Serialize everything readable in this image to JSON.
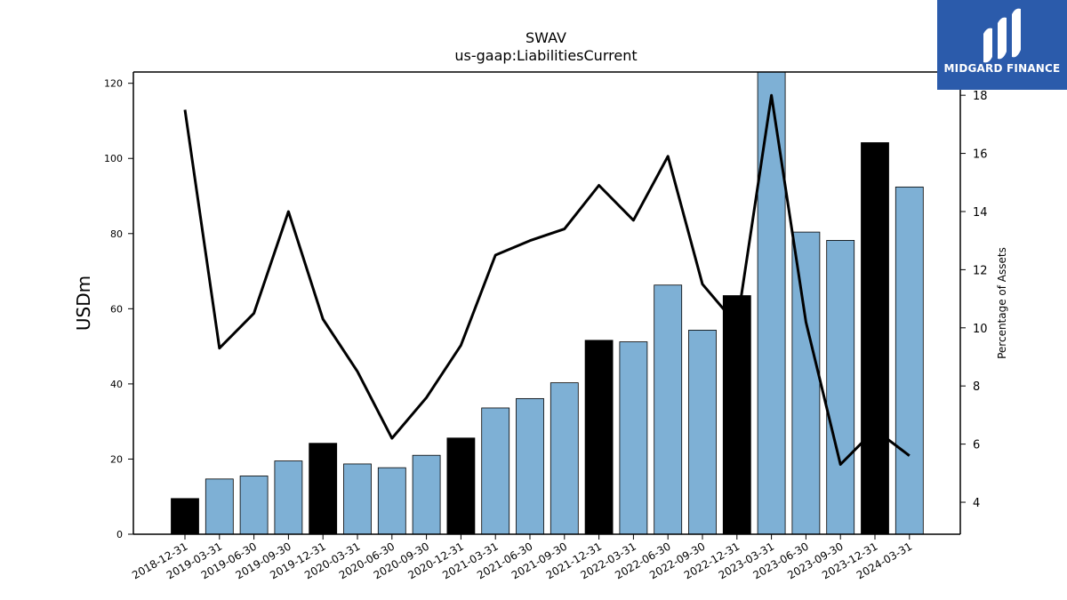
{
  "brand": {
    "name": "MIDGARD FINANCE",
    "bg_color": "#2b5bab"
  },
  "chart_data": {
    "type": "bar",
    "title": "SWAV",
    "subtitle": "us-gaap:LiabilitiesCurrent",
    "ylabel": "USDm",
    "y2label": "Percentage of Assets",
    "ylim": [
      0,
      123
    ],
    "y2lim": [
      2.9,
      18.8
    ],
    "yticks": [
      0,
      20,
      40,
      60,
      80,
      100,
      120
    ],
    "y2ticks": [
      4,
      6,
      8,
      10,
      12,
      14,
      16,
      18
    ],
    "categories": [
      "2018-12-31",
      "2019-03-31",
      "2019-06-30",
      "2019-09-30",
      "2019-12-31",
      "2020-03-31",
      "2020-06-30",
      "2020-09-30",
      "2020-12-31",
      "2021-03-31",
      "2021-06-30",
      "2021-09-30",
      "2021-12-31",
      "2022-03-31",
      "2022-06-30",
      "2022-09-30",
      "2022-12-31",
      "2023-03-31",
      "2023-06-30",
      "2023-09-30",
      "2023-12-31",
      "2024-03-31"
    ],
    "series": [
      {
        "type": "bar",
        "values": [
          9.5,
          14.7,
          15.5,
          19.5,
          24.2,
          18.7,
          17.7,
          21.0,
          25.6,
          33.6,
          36.1,
          40.3,
          51.6,
          51.2,
          66.3,
          54.3,
          63.5,
          123,
          80.4,
          78.2,
          104.2,
          92.4
        ],
        "colors": [
          "#000000",
          "#7eb0d5",
          "#7eb0d5",
          "#7eb0d5",
          "#000000",
          "#7eb0d5",
          "#7eb0d5",
          "#7eb0d5",
          "#000000",
          "#7eb0d5",
          "#7eb0d5",
          "#7eb0d5",
          "#000000",
          "#7eb0d5",
          "#7eb0d5",
          "#7eb0d5",
          "#000000",
          "#7eb0d5",
          "#7eb0d5",
          "#7eb0d5",
          "#000000",
          "#7eb0d5"
        ]
      },
      {
        "type": "line",
        "axis": "right",
        "color": "#000000",
        "values": [
          17.5,
          9.3,
          10.5,
          14.0,
          10.3,
          8.5,
          6.2,
          7.6,
          9.4,
          12.5,
          13.0,
          13.4,
          14.9,
          13.7,
          15.9,
          11.5,
          10.1,
          18.0,
          10.2,
          5.3,
          6.5,
          5.6
        ]
      }
    ],
    "grid": false,
    "legend": "none"
  }
}
